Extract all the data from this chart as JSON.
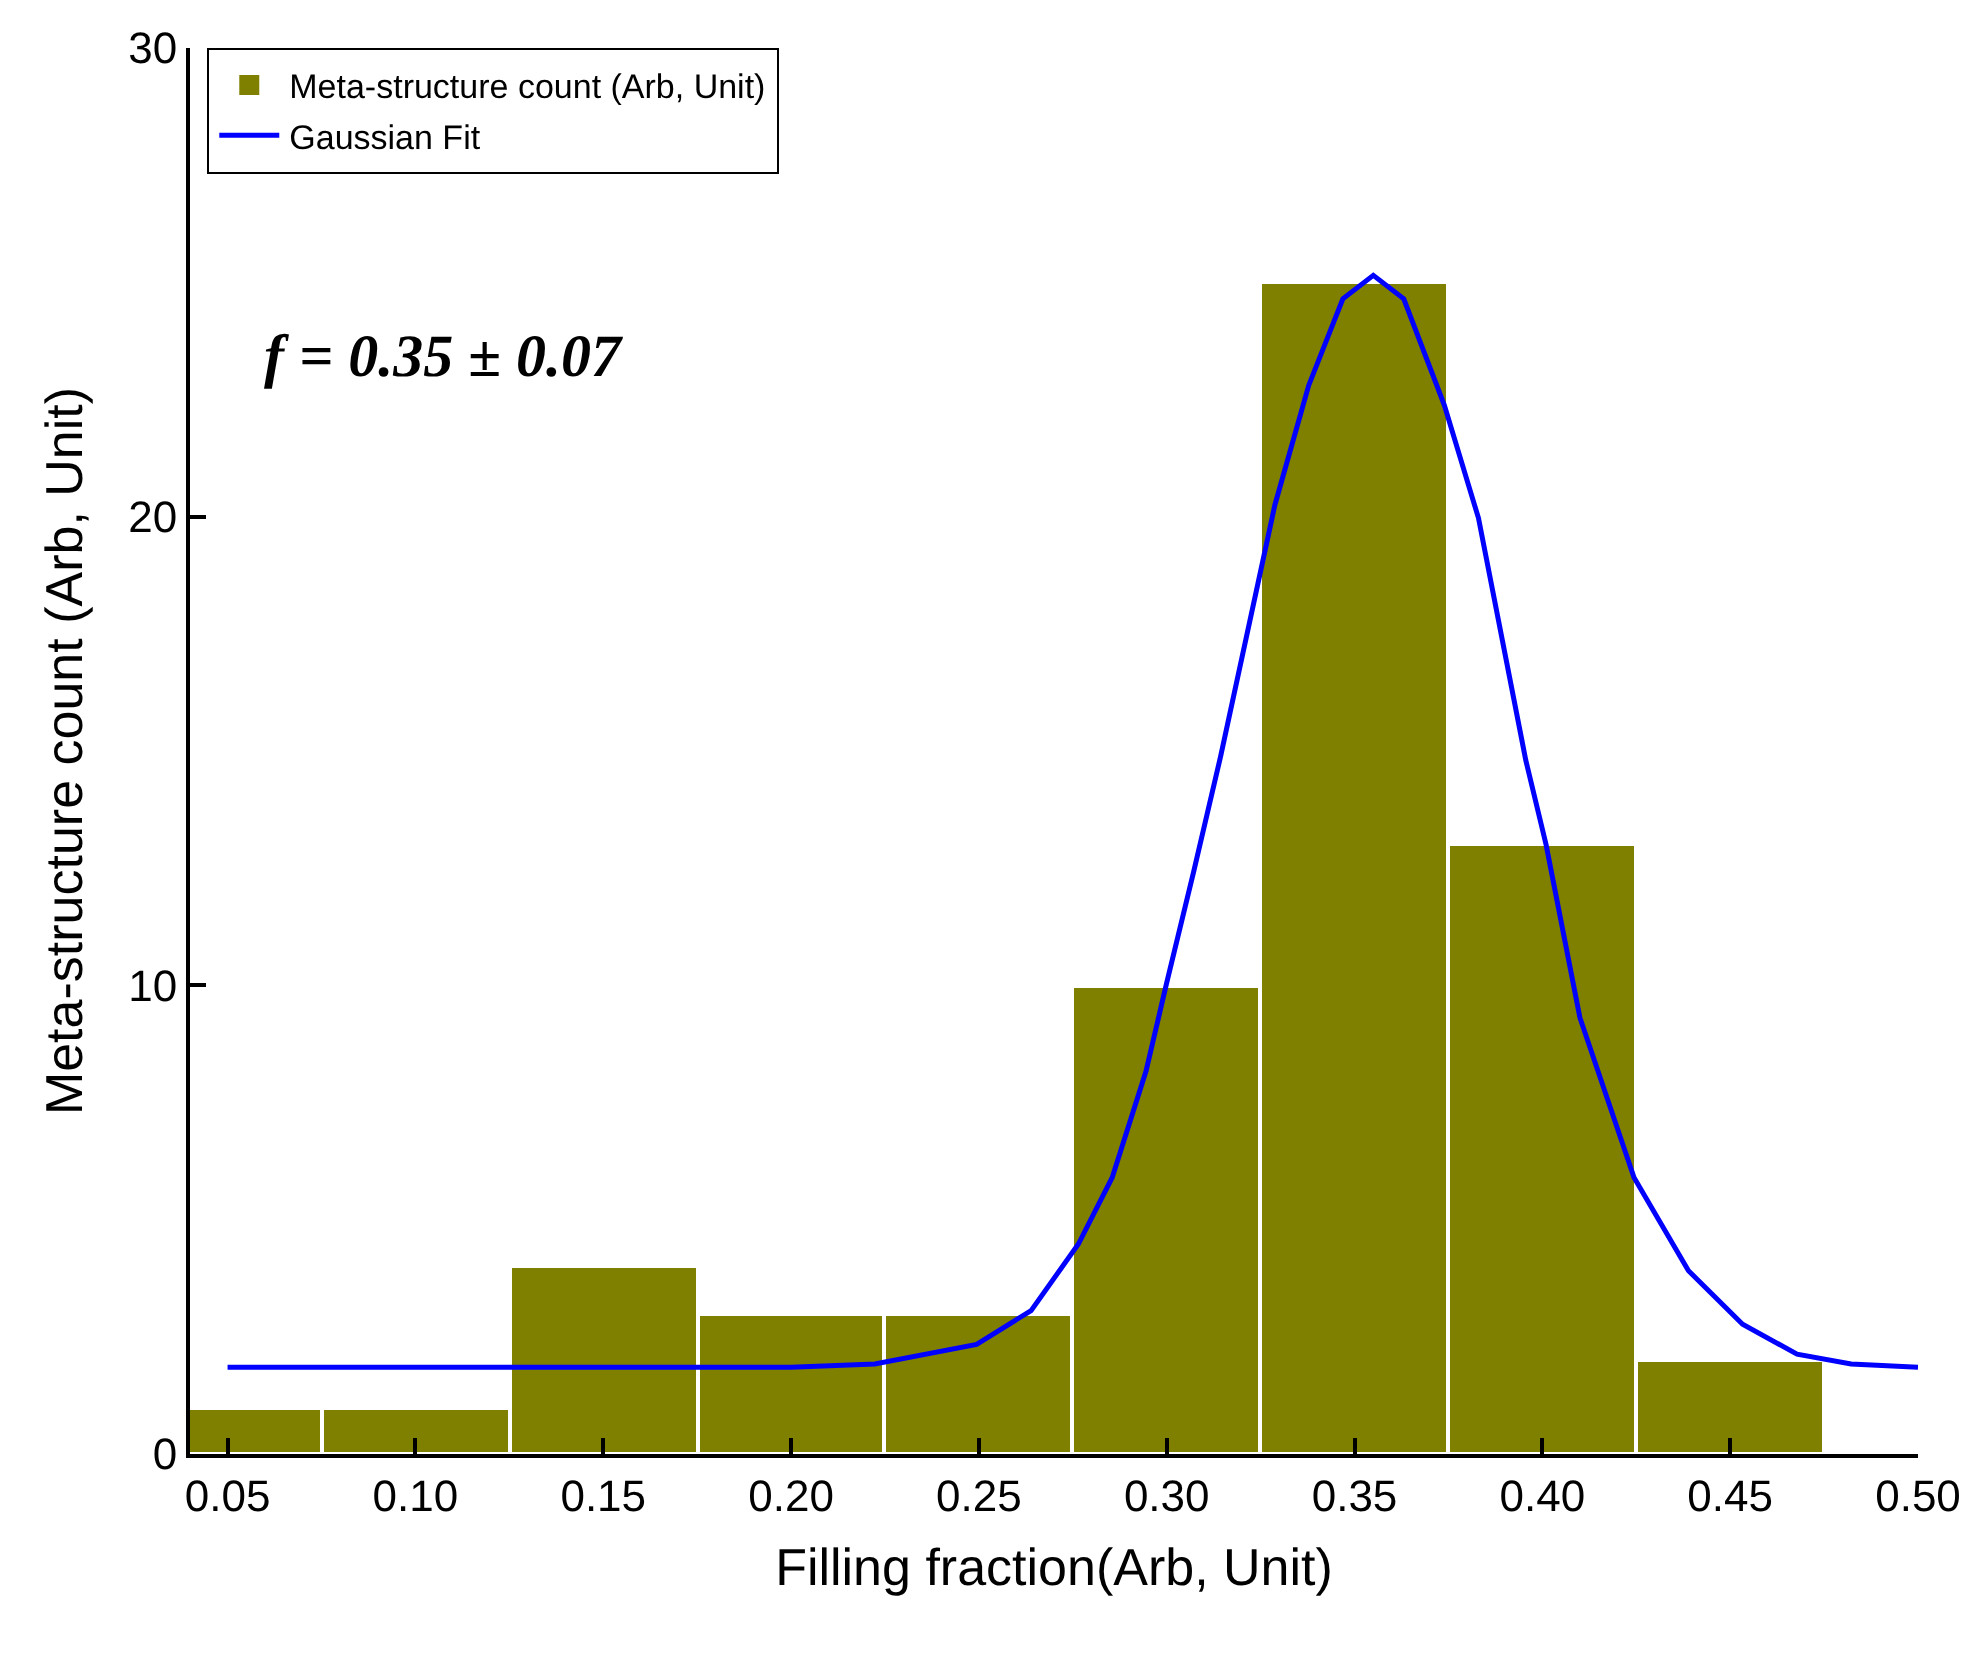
{
  "chart_data": {
    "type": "histogram",
    "xlabel": "Filling fraction(Arb, Unit)",
    "ylabel": "Meta-structure count (Arb, Unit)",
    "bins": [
      0.025,
      0.075,
      0.125,
      0.175,
      0.225,
      0.275,
      0.325,
      0.375,
      0.425,
      0.475
    ],
    "series": [
      {
        "name": "Meta-structure count (Arb, Unit)",
        "color": "#808000",
        "values": [
          1,
          1,
          4,
          3,
          3,
          10,
          25,
          13,
          2
        ]
      },
      {
        "name": "Gaussian Fit",
        "type": "line",
        "color": "#0000ff",
        "x": [
          0.05,
          0.1,
          0.15,
          0.2,
          0.2223,
          0.2494,
          0.2639,
          0.2765,
          0.2855,
          0.2945,
          0.2999,
          0.3072,
          0.3144,
          0.3288,
          0.3378,
          0.3469,
          0.355,
          0.3631,
          0.3739,
          0.383,
          0.3956,
          0.401,
          0.41,
          0.4244,
          0.4389,
          0.4533,
          0.4678,
          0.4822,
          0.5
        ],
        "values": [
          1.85,
          1.85,
          1.85,
          1.85,
          1.92,
          2.34,
          3.06,
          4.48,
          5.9,
          8.17,
          10.02,
          12.43,
          14.9,
          20.25,
          22.8,
          24.65,
          25.15,
          24.65,
          22.38,
          19.97,
          14.8,
          13.0,
          9.31,
          5.9,
          3.91,
          2.77,
          2.13,
          1.92,
          1.85
        ]
      }
    ],
    "xlim": [
      0.04,
      0.5
    ],
    "xticks": [
      0.05,
      {
        "value": 0.1,
        "label": "0.10"
      },
      {
        "value": 0.15,
        "label": "0.15"
      },
      {
        "value": 0.2,
        "label": "0.20"
      },
      {
        "value": 0.25,
        "label": "0.25"
      },
      {
        "value": 0.3,
        "label": "0.30"
      },
      {
        "value": 0.35,
        "label": "0.35"
      },
      {
        "value": 0.4,
        "label": "0.40"
      },
      {
        "value": 0.45,
        "label": "0.45"
      },
      {
        "value": 0.5,
        "label": "0.50"
      }
    ],
    "ylim": [
      0,
      30
    ],
    "yticks": [
      0,
      10,
      20,
      30
    ],
    "legend": "top left",
    "annotations": [
      "f = 0.35 ± 0.07"
    ]
  }
}
